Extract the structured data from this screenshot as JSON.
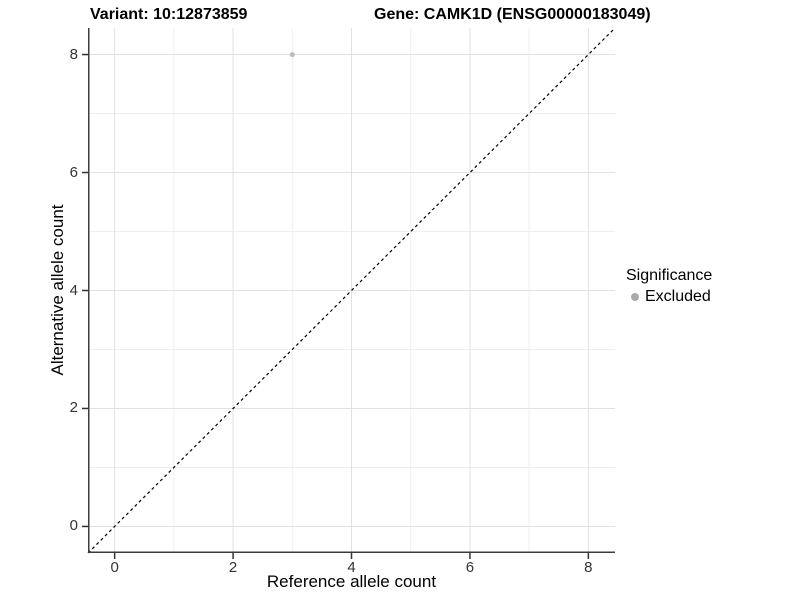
{
  "chart_data": {
    "type": "scatter",
    "title_left": "Variant: 10:12873859",
    "title_right": "Gene: CAMK1D (ENSG00000183049)",
    "xlabel": "Reference allele count",
    "ylabel": "Alternative allele count",
    "xlim": [
      -0.45,
      8.45
    ],
    "ylim": [
      -0.45,
      8.45
    ],
    "xticks": [
      0,
      2,
      4,
      6,
      8
    ],
    "yticks": [
      0,
      2,
      4,
      6,
      8
    ],
    "minor_xticks": [
      1,
      3,
      5,
      7
    ],
    "minor_yticks": [
      1,
      3,
      5,
      7
    ],
    "grid": "major+minor",
    "series": [
      {
        "name": "Excluded",
        "color": "#bdbdbd",
        "points": [
          {
            "x": 3,
            "y": 8
          }
        ]
      }
    ],
    "identity_line": {
      "slope": 1,
      "intercept": 0,
      "style": "dashed",
      "color": "#000000"
    },
    "legend": {
      "title": "Significance",
      "position": "right",
      "entries": [
        {
          "label": "Excluded",
          "color": "#aaaaaa"
        }
      ]
    }
  },
  "colors": {
    "background": "#ffffff",
    "grid_major": "#e2e2e2",
    "grid_minor": "#efefef",
    "axis_line": "#3c3c3c",
    "tick_mark": "#333333",
    "tick_label": "#333333",
    "point": "#bdbdbd"
  }
}
